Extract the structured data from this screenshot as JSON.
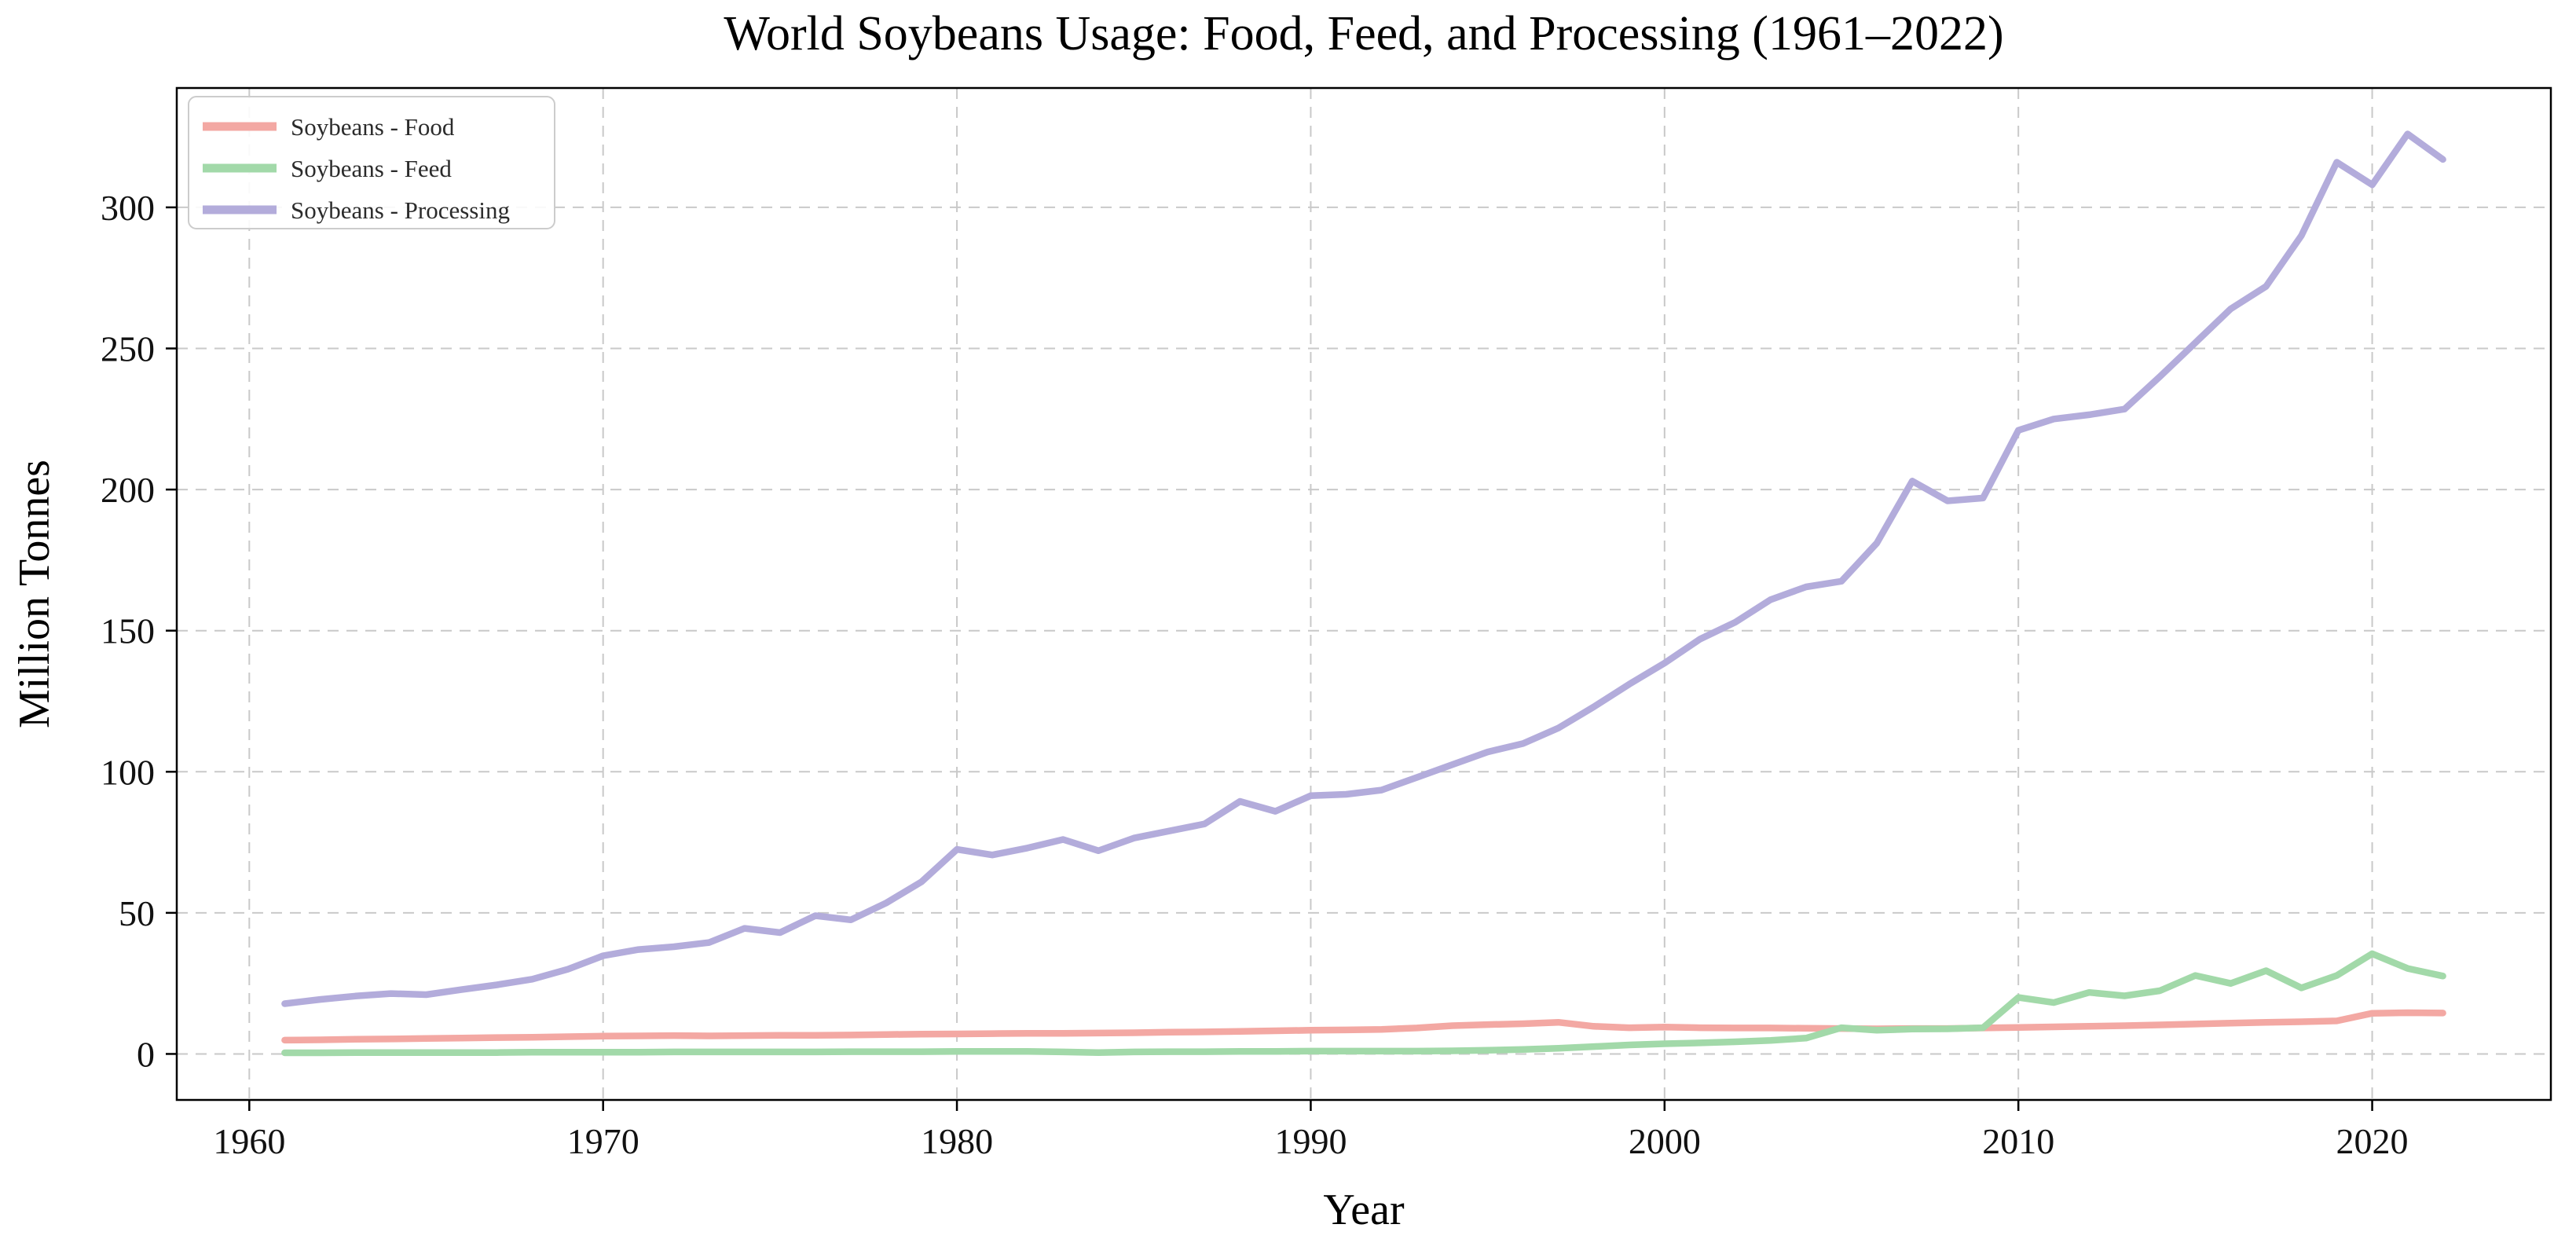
{
  "figure": {
    "title": "World Soybeans Usage: Food, Feed, and Processing (1961–2022)",
    "xlabel": "Year",
    "ylabel": "Million Tonnes"
  },
  "colors": {
    "food": "#f3a8a3",
    "feed": "#a2d9a9",
    "processing": "#b3acdb",
    "grid": "#c9c9c9",
    "spine": "#000000",
    "legend_border": "#cccccc",
    "text": "#111111"
  },
  "axes": {
    "x_ticks": [
      1960,
      1970,
      1980,
      1990,
      2000,
      2010,
      2020
    ],
    "y_ticks": [
      0,
      50,
      100,
      150,
      200,
      250,
      300
    ]
  },
  "chart_data": {
    "type": "line",
    "title": "World Soybeans Usage: Food, Feed, and Processing (1961–2022)",
    "xlabel": "Year",
    "ylabel": "Million Tonnes",
    "xlim": [
      1957.95,
      2025.05
    ],
    "ylim": [
      -16.3,
      342.3
    ],
    "grid": true,
    "grid_style": "dashed",
    "legend_position": "upper left",
    "x": [
      1961,
      1962,
      1963,
      1964,
      1965,
      1966,
      1967,
      1968,
      1969,
      1970,
      1971,
      1972,
      1973,
      1974,
      1975,
      1976,
      1977,
      1978,
      1979,
      1980,
      1981,
      1982,
      1983,
      1984,
      1985,
      1986,
      1987,
      1988,
      1989,
      1990,
      1991,
      1992,
      1993,
      1994,
      1995,
      1996,
      1997,
      1998,
      1999,
      2000,
      2001,
      2002,
      2003,
      2004,
      2005,
      2006,
      2007,
      2008,
      2009,
      2010,
      2011,
      2012,
      2013,
      2014,
      2015,
      2016,
      2017,
      2018,
      2019,
      2020,
      2021,
      2022
    ],
    "series": [
      {
        "name": "Soybeans - Food",
        "color": "#f3a8a3",
        "values": [
          4.9,
          5.0,
          5.2,
          5.3,
          5.5,
          5.6,
          5.8,
          5.9,
          6.1,
          6.3,
          6.4,
          6.5,
          6.4,
          6.5,
          6.6,
          6.6,
          6.7,
          6.9,
          7.0,
          7.1,
          7.2,
          7.3,
          7.3,
          7.4,
          7.5,
          7.7,
          7.8,
          8.0,
          8.2,
          8.4,
          8.5,
          8.7,
          9.2,
          10.0,
          10.4,
          10.7,
          11.2,
          9.8,
          9.3,
          9.5,
          9.3,
          9.2,
          9.2,
          9.1,
          9.0,
          8.9,
          9.0,
          9.0,
          9.2,
          9.4,
          9.6,
          9.8,
          10.0,
          10.3,
          10.6,
          10.9,
          11.2,
          11.4,
          11.7,
          14.4,
          14.6,
          14.5
        ]
      },
      {
        "name": "Soybeans - Feed",
        "color": "#a2d9a9",
        "values": [
          0.4,
          0.4,
          0.5,
          0.5,
          0.5,
          0.5,
          0.5,
          0.6,
          0.6,
          0.6,
          0.6,
          0.7,
          0.7,
          0.7,
          0.7,
          0.7,
          0.8,
          0.8,
          0.8,
          0.9,
          0.9,
          0.9,
          0.7,
          0.5,
          0.7,
          0.8,
          0.8,
          0.9,
          0.9,
          1.0,
          1.0,
          1.0,
          1.0,
          1.1,
          1.3,
          1.6,
          2.0,
          2.6,
          3.2,
          3.6,
          3.9,
          4.3,
          4.8,
          5.6,
          9.3,
          8.4,
          8.8,
          8.9,
          9.3,
          20.0,
          18.2,
          21.8,
          20.6,
          22.4,
          27.8,
          25.0,
          29.5,
          23.4,
          27.8,
          35.5,
          30.3,
          27.6
        ]
      },
      {
        "name": "Soybeans - Processing",
        "color": "#b3acdb",
        "values": [
          17.8,
          19.3,
          20.5,
          21.4,
          21.0,
          22.8,
          24.5,
          26.5,
          30.0,
          34.8,
          37.0,
          38.0,
          39.5,
          44.5,
          43.0,
          49.0,
          47.5,
          53.5,
          61.0,
          72.5,
          70.5,
          73.0,
          76.0,
          72.0,
          76.5,
          79.0,
          81.5,
          89.5,
          86.0,
          91.5,
          92.0,
          93.5,
          98.0,
          102.5,
          107.0,
          110.0,
          115.5,
          123.0,
          131.0,
          138.5,
          147.0,
          153.0,
          161.0,
          165.5,
          167.5,
          181.0,
          203.0,
          196.0,
          197.0,
          221.0,
          225.0,
          226.5,
          228.5,
          240.0,
          252.0,
          264.0,
          272.0,
          290.0,
          316.0,
          308.0,
          326.0,
          317.0
        ]
      }
    ]
  }
}
